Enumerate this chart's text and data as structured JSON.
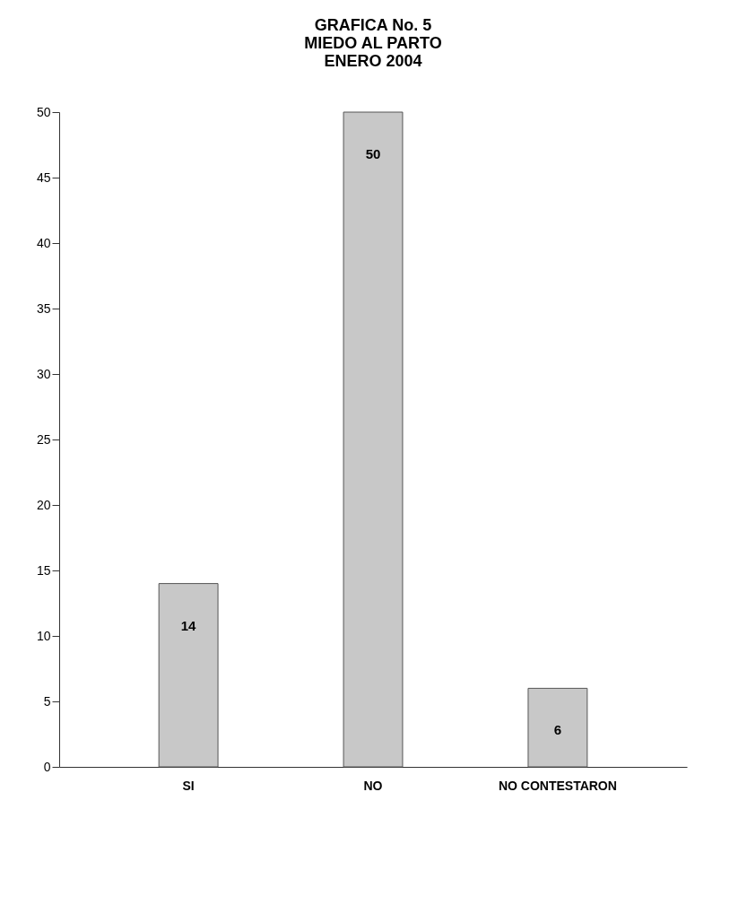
{
  "chart_data": {
    "type": "bar",
    "title": "GRAFICA No. 5\nMIEDO AL PARTO\nENERO 2004",
    "categories": [
      "SI",
      "NO",
      "NO CONTESTARON"
    ],
    "values": [
      14,
      50,
      6
    ],
    "color": "#c8c8c8",
    "ylim": [
      0,
      50
    ],
    "yticks": [
      0,
      5,
      10,
      15,
      20,
      25,
      30,
      35,
      40,
      45,
      50
    ],
    "grid": false,
    "data_labels": true
  }
}
